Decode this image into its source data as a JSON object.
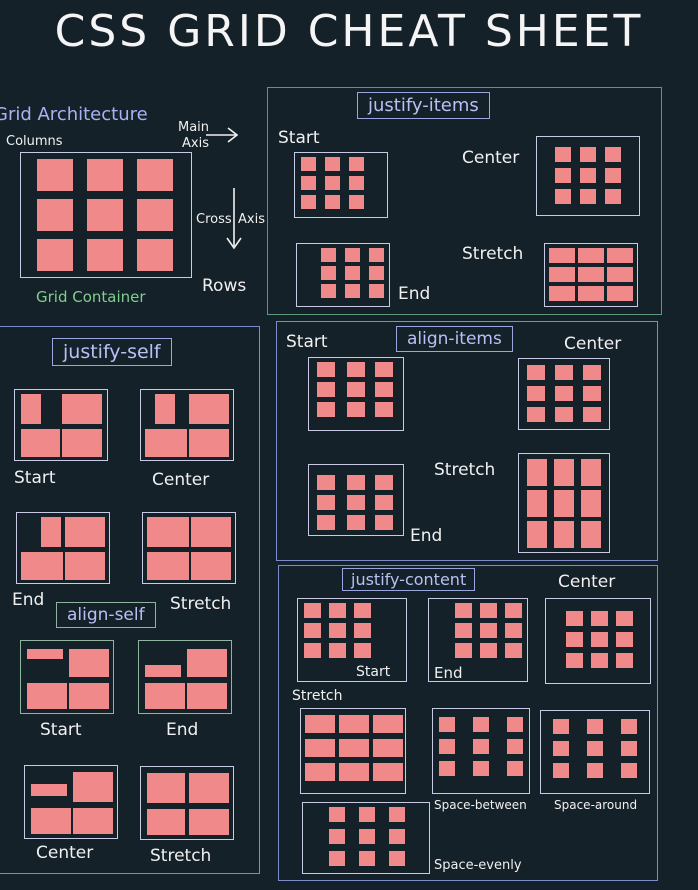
{
  "title": "CSS GRID CHEAT SHEET",
  "architecture": {
    "heading": "Grid Architecture",
    "columns": "Columns",
    "main_axis_1": "Main",
    "main_axis_2": "Axis",
    "cross_axis_1": "Cross",
    "cross_axis_2": "Axis",
    "rows": "Rows",
    "container": "Grid Container"
  },
  "justify_items": {
    "heading": "justify-items",
    "start": "Start",
    "center": "Center",
    "end": "End",
    "stretch": "Stretch"
  },
  "justify_self": {
    "heading": "justify-self",
    "start": "Start",
    "center": "Center",
    "end": "End",
    "stretch": "Stretch"
  },
  "align_items": {
    "heading": "align-items",
    "start": "Start",
    "center": "Center",
    "end": "End",
    "stretch": "Stretch"
  },
  "align_self": {
    "heading": "align-self",
    "start": "Start",
    "end": "End",
    "center": "Center",
    "stretch": "Stretch"
  },
  "justify_content": {
    "heading": "justify-content",
    "start": "Start",
    "end": "End",
    "center": "Center",
    "stretch": "Stretch",
    "space_between": "Space-between",
    "space_around": "Space-around",
    "space_evenly": "Space-evenly"
  },
  "colors": {
    "cell": "#f08a8a",
    "background": "#152129",
    "green_border": "#5a9a7c",
    "blue_border": "#7e8ccb"
  }
}
